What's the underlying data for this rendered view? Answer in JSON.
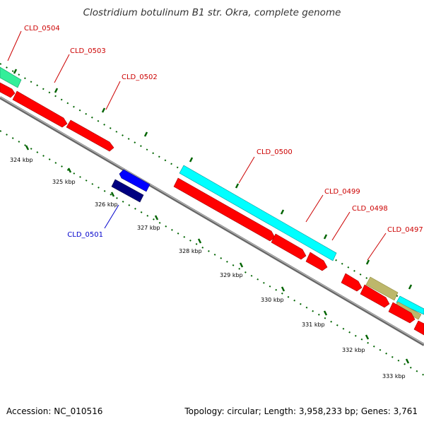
{
  "title": "Clostridium botulinum B1 str. Okra, complete genome",
  "footer": {
    "accession": "Accession: NC_010516",
    "summary": "Topology: circular; Length: 3,958,233 bp; Genes: 3,761"
  },
  "colors": {
    "red_gene": "#ff0000",
    "cyan_gene": "#00ffff",
    "green_gene": "#33ee99",
    "navy_gene": "#000080",
    "blue_gene": "#0000ff",
    "olive_gene": "#bdb76b",
    "backbone": "#888888",
    "ticks": "#006400",
    "label_red": "#cc0000",
    "label_blue": "#0000cc"
  },
  "gene_labels": [
    {
      "name": "CLD_0504",
      "color": "red"
    },
    {
      "name": "CLD_0503",
      "color": "red"
    },
    {
      "name": "CLD_0502",
      "color": "red"
    },
    {
      "name": "CLD_0500",
      "color": "red"
    },
    {
      "name": "CLD_0499",
      "color": "red"
    },
    {
      "name": "CLD_0498",
      "color": "red"
    },
    {
      "name": "CLD_0497",
      "color": "red"
    },
    {
      "name": "CLD_0501",
      "color": "blue"
    }
  ],
  "tick_labels": [
    "324 kbp",
    "325 kbp",
    "326 kbp",
    "327 kbp",
    "328 kbp",
    "329 kbp",
    "330 kbp",
    "331 kbp",
    "332 kbp",
    "333 kbp"
  ]
}
